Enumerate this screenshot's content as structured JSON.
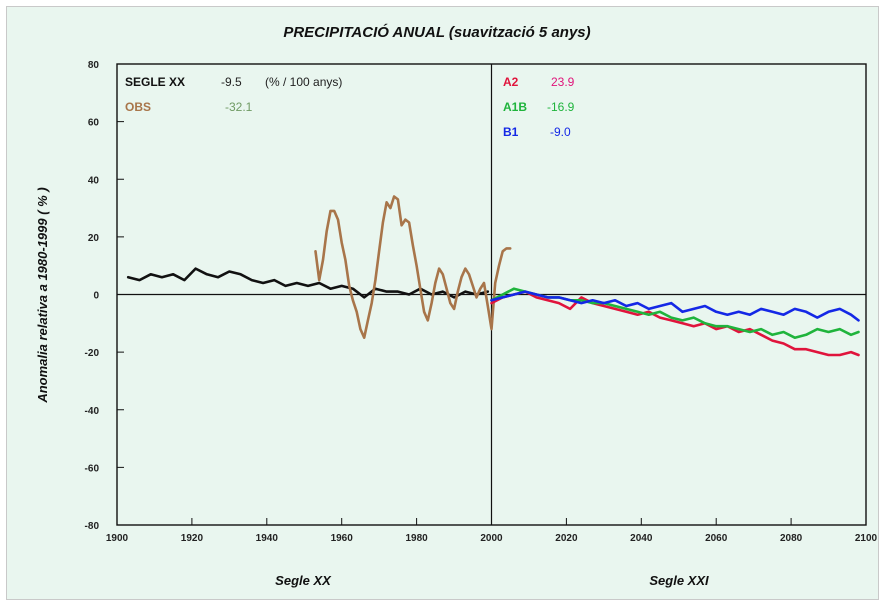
{
  "chart_data": {
    "type": "line",
    "title": "PRECIPITACIÓ ANUAL (suavització 5 anys)",
    "ylabel": "Anomalia relativa a 1980-1999 ( % )",
    "xlabels": [
      "Segle XX",
      "Segle XXI"
    ],
    "xlim": [
      1900,
      2100
    ],
    "ylim": [
      -80,
      80
    ],
    "xticks": [
      1900,
      1920,
      1940,
      1960,
      1980,
      2000,
      2020,
      2040,
      2060,
      2080,
      2100
    ],
    "yticks": [
      80,
      60,
      40,
      20,
      0,
      -20,
      -40,
      -60,
      -80
    ],
    "legend_left": [
      {
        "label": "SEGLE XX",
        "value": "-9.5",
        "unit": "(% / 100 anys)",
        "color": "#111111",
        "value_color": "#222222"
      },
      {
        "label": "OBS",
        "value": "-32.1",
        "color": "#a8754a",
        "value_color": "#6f9a63"
      }
    ],
    "legend_right": [
      {
        "label": "A2",
        "value": "23.9",
        "color": "#e0143c",
        "value_color": "#e0147a"
      },
      {
        "label": "A1B",
        "value": "-16.9",
        "color": "#1fb43c",
        "value_color": "#1fb43c"
      },
      {
        "label": "B1",
        "value": "-9.0",
        "color": "#1428e6",
        "value_color": "#1428e6"
      }
    ],
    "series": [
      {
        "name": "SEGLE XX",
        "color": "#111111",
        "x": [
          1903,
          1906,
          1909,
          1912,
          1915,
          1918,
          1921,
          1924,
          1927,
          1930,
          1933,
          1936,
          1939,
          1942,
          1945,
          1948,
          1951,
          1954,
          1957,
          1960,
          1963,
          1966,
          1969,
          1972,
          1975,
          1978,
          1981,
          1984,
          1987,
          1990,
          1993,
          1996,
          1999
        ],
        "y": [
          6,
          5,
          7,
          6,
          7,
          5,
          9,
          7,
          6,
          8,
          7,
          5,
          4,
          5,
          3,
          4,
          3,
          4,
          2,
          3,
          2,
          -1,
          2,
          1,
          1,
          0,
          2,
          0,
          1,
          -1,
          1,
          0,
          1
        ]
      },
      {
        "name": "OBS",
        "color": "#a8754a",
        "x": [
          1953,
          1954,
          1955,
          1956,
          1957,
          1958,
          1959,
          1960,
          1961,
          1962,
          1963,
          1964,
          1965,
          1966,
          1967,
          1968,
          1969,
          1970,
          1971,
          1972,
          1973,
          1974,
          1975,
          1976,
          1977,
          1978,
          1979,
          1980,
          1981,
          1982,
          1983,
          1984,
          1985,
          1986,
          1987,
          1988,
          1989,
          1990,
          1991,
          1992,
          1993,
          1994,
          1995,
          1996,
          1997,
          1998,
          1999,
          2000,
          2001,
          2002,
          2003,
          2004,
          2005
        ],
        "y": [
          15,
          5,
          12,
          22,
          29,
          29,
          26,
          18,
          12,
          3,
          -2,
          -6,
          -12,
          -15,
          -9,
          -3,
          5,
          15,
          25,
          32,
          30,
          34,
          33,
          24,
          26,
          25,
          17,
          10,
          2,
          -6,
          -9,
          -3,
          4,
          9,
          7,
          2,
          -3,
          -5,
          1,
          6,
          9,
          7,
          3,
          -1,
          2,
          4,
          -4,
          -12,
          4,
          10,
          15,
          16,
          16
        ]
      },
      {
        "name": "A2",
        "color": "#e0143c",
        "x": [
          2000,
          2003,
          2006,
          2009,
          2012,
          2015,
          2018,
          2021,
          2024,
          2027,
          2030,
          2033,
          2036,
          2039,
          2042,
          2045,
          2048,
          2051,
          2054,
          2057,
          2060,
          2063,
          2066,
          2069,
          2072,
          2075,
          2078,
          2081,
          2084,
          2087,
          2090,
          2093,
          2096,
          2098
        ],
        "y": [
          -3,
          -1,
          0,
          1,
          -1,
          -2,
          -3,
          -5,
          -1,
          -3,
          -4,
          -5,
          -6,
          -7,
          -6,
          -8,
          -9,
          -10,
          -11,
          -10,
          -12,
          -11,
          -13,
          -12,
          -14,
          -16,
          -17,
          -19,
          -19,
          -20,
          -21,
          -21,
          -20,
          -21
        ]
      },
      {
        "name": "A1B",
        "color": "#1fb43c",
        "x": [
          2000,
          2003,
          2006,
          2009,
          2012,
          2015,
          2018,
          2021,
          2024,
          2027,
          2030,
          2033,
          2036,
          2039,
          2042,
          2045,
          2048,
          2051,
          2054,
          2057,
          2060,
          2063,
          2066,
          2069,
          2072,
          2075,
          2078,
          2081,
          2084,
          2087,
          2090,
          2093,
          2096,
          2098
        ],
        "y": [
          -2,
          0,
          2,
          1,
          0,
          -1,
          -1,
          -2,
          -2,
          -3,
          -3,
          -4,
          -5,
          -6,
          -7,
          -6,
          -8,
          -9,
          -8,
          -10,
          -11,
          -11,
          -12,
          -13,
          -12,
          -14,
          -13,
          -15,
          -14,
          -12,
          -13,
          -12,
          -14,
          -13
        ]
      },
      {
        "name": "B1",
        "color": "#1428e6",
        "x": [
          2000,
          2003,
          2006,
          2009,
          2012,
          2015,
          2018,
          2021,
          2024,
          2027,
          2030,
          2033,
          2036,
          2039,
          2042,
          2045,
          2048,
          2051,
          2054,
          2057,
          2060,
          2063,
          2066,
          2069,
          2072,
          2075,
          2078,
          2081,
          2084,
          2087,
          2090,
          2093,
          2096,
          2098
        ],
        "y": [
          -2,
          -1,
          0,
          1,
          0,
          -1,
          -1,
          -2,
          -3,
          -2,
          -3,
          -2,
          -4,
          -3,
          -5,
          -4,
          -3,
          -6,
          -5,
          -4,
          -6,
          -7,
          -6,
          -7,
          -5,
          -6,
          -7,
          -5,
          -6,
          -8,
          -6,
          -5,
          -7,
          -9
        ]
      }
    ]
  }
}
